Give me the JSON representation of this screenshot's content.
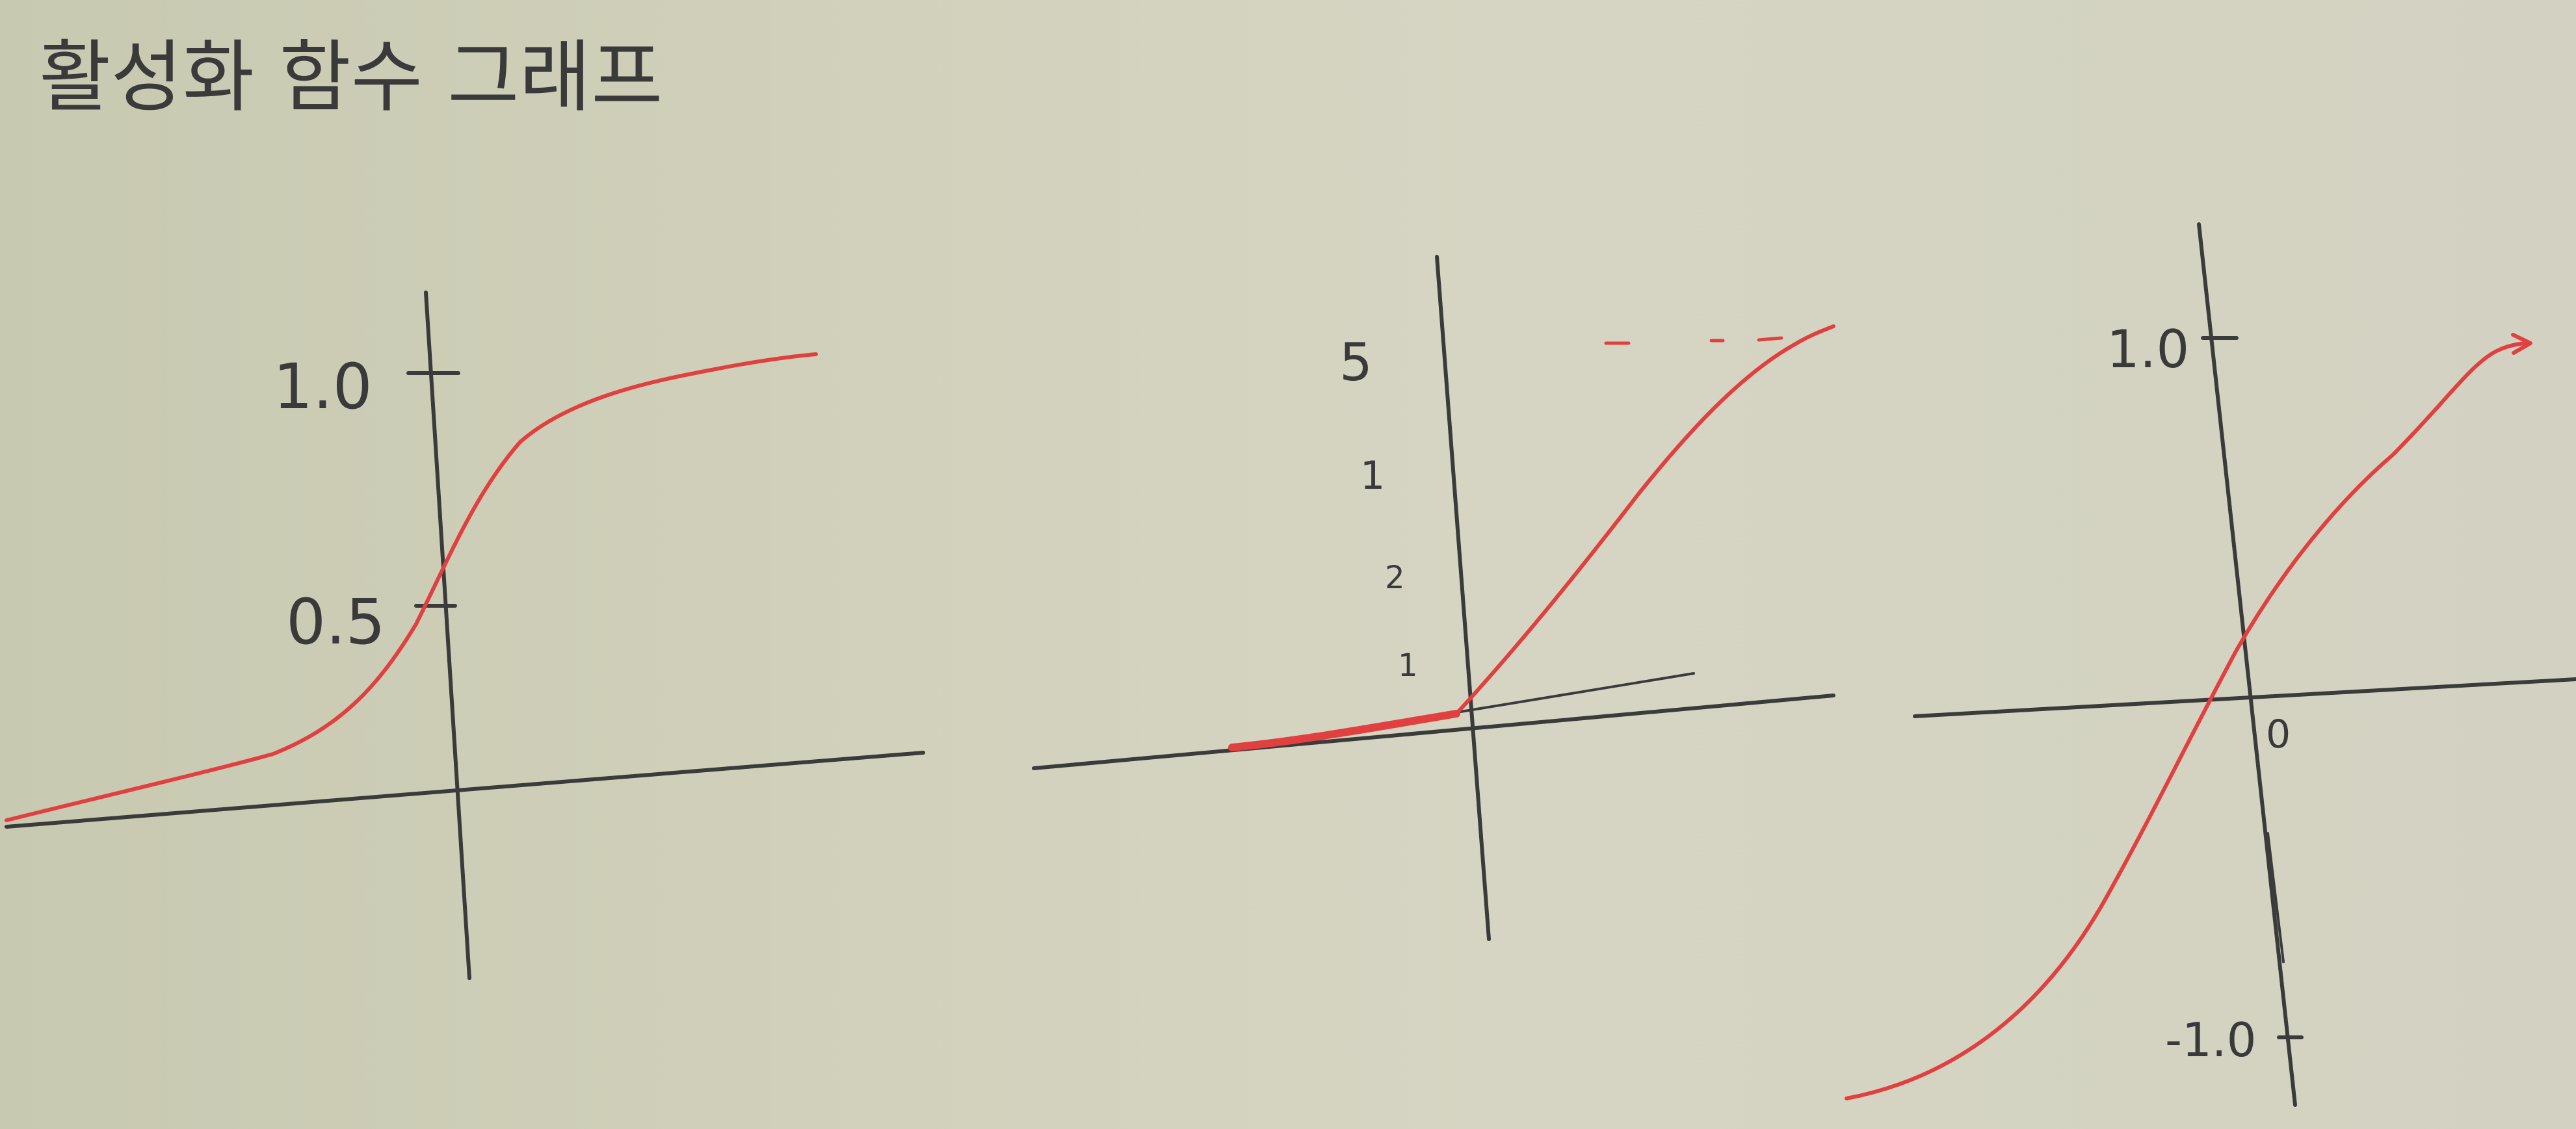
{
  "title": "활성화 함수 그래프",
  "graphs": [
    {
      "tick_labels": [
        "1.0",
        "0.5"
      ]
    },
    {
      "tick_labels": [
        "5",
        "1",
        "2",
        "1"
      ]
    },
    {
      "tick_labels": [
        "1.0",
        "0",
        "-1.0"
      ]
    }
  ],
  "colors": {
    "paper": "#d2d1bd",
    "pencil": "#3b3b3b",
    "red_pen": "#e04040"
  }
}
